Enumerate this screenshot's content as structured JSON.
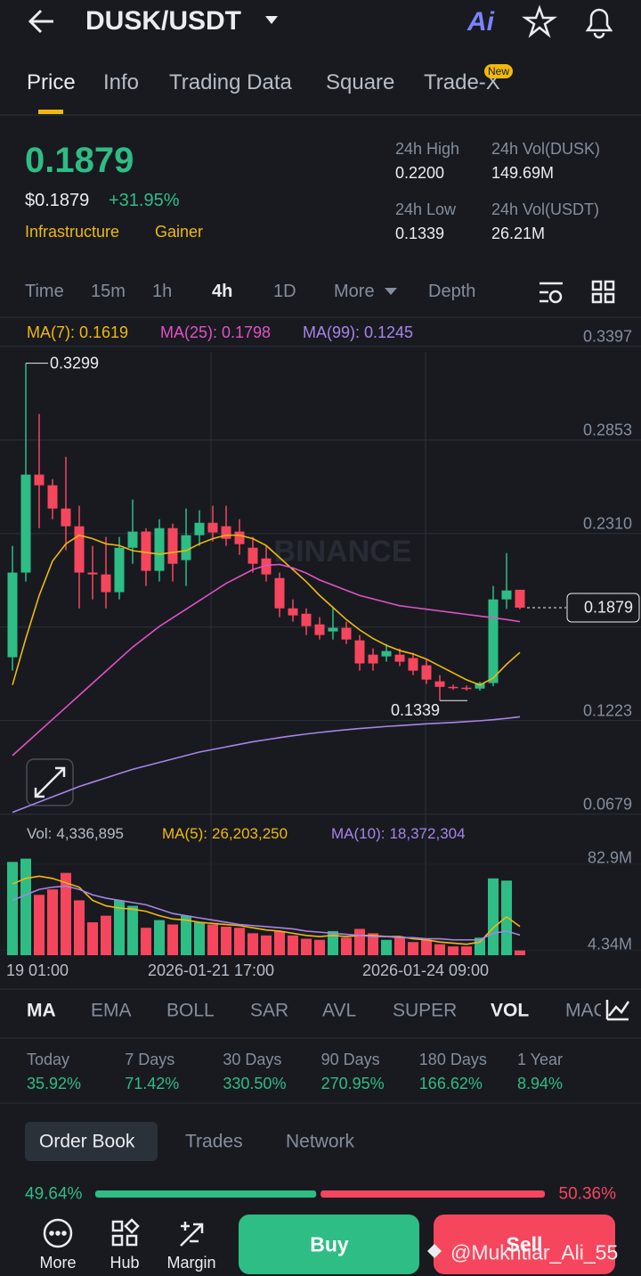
{
  "header": {
    "pair": "DUSK/USDT",
    "ai": "Ai"
  },
  "tabs": [
    "Price",
    "Info",
    "Trading Data",
    "Square",
    "Trade-X"
  ],
  "new_badge": "New",
  "price": {
    "last": "0.1879",
    "fiat": "$0.1879",
    "change": "+31.95%",
    "tags": [
      "Infrastructure",
      "Gainer"
    ]
  },
  "stats": [
    {
      "label": "24h High",
      "value": "0.2200"
    },
    {
      "label": "24h Vol(DUSK)",
      "value": "149.69M"
    },
    {
      "label": "24h Low",
      "value": "0.1339"
    },
    {
      "label": "24h Vol(USDT)",
      "value": "26.21M"
    }
  ],
  "intervals": [
    "Time",
    "15m",
    "1h",
    "4h",
    "1D",
    "More",
    "Depth"
  ],
  "chart": {
    "ylim": [
      0.0569,
      0.3494
    ],
    "yticks": [
      0.3397,
      0.2853,
      {
        "value": 0.231,
        "label": "0.2310"
      },
      0.1766,
      0.1223,
      0.0679
    ],
    "ma_legend": [
      {
        "label": "MA(7):",
        "value": "0.1619",
        "color": "#f0b90b",
        "values": [
          0.143,
          0.17,
          0.195,
          0.215,
          0.225,
          0.23,
          0.228,
          0.225,
          0.224,
          0.221,
          0.22,
          0.219,
          0.22,
          0.221,
          0.225,
          0.228,
          0.23,
          0.23,
          0.228,
          0.224,
          0.217,
          0.21,
          0.203,
          0.195,
          0.188,
          0.181,
          0.175,
          0.17,
          0.166,
          0.163,
          0.161,
          0.158,
          0.154,
          0.15,
          0.146,
          0.143,
          0.147,
          0.155,
          0.1619
        ]
      },
      {
        "label": "MA(25):",
        "value": "0.1798",
        "color": "#e052c4",
        "values": [
          0.102,
          0.109,
          0.116,
          0.123,
          0.13,
          0.137,
          0.144,
          0.151,
          0.158,
          0.165,
          0.171,
          0.177,
          0.182,
          0.187,
          0.192,
          0.197,
          0.202,
          0.206,
          0.21,
          0.2125,
          0.213,
          0.211,
          0.208,
          0.204,
          0.201,
          0.198,
          0.195,
          0.193,
          0.191,
          0.189,
          0.188,
          0.187,
          0.186,
          0.185,
          0.184,
          0.183,
          0.182,
          0.181,
          0.1798
        ]
      },
      {
        "label": "MA(99):",
        "value": "0.1245",
        "color": "#a884e8",
        "values": [
          0.069,
          0.072,
          0.075,
          0.078,
          0.081,
          0.084,
          0.0865,
          0.089,
          0.0915,
          0.094,
          0.096,
          0.098,
          0.1,
          0.102,
          0.104,
          0.1055,
          0.107,
          0.1085,
          0.11,
          0.1112,
          0.1124,
          0.1135,
          0.1145,
          0.1154,
          0.1162,
          0.117,
          0.1177,
          0.1183,
          0.1189,
          0.1194,
          0.1199,
          0.1204,
          0.1208,
          0.1212,
          0.1217,
          0.1222,
          0.1228,
          0.1236,
          0.1245
        ]
      }
    ],
    "up_color": "#2ebd85",
    "down_color": "#f6465d",
    "open": [
      0.1591,
      0.2083,
      0.2652,
      0.259,
      0.2455,
      0.2352,
      0.2083,
      0.2072,
      0.1969,
      0.2227,
      0.2321,
      0.2093,
      0.2341,
      0.2155,
      0.23,
      0.2372,
      0.2352,
      0.2321,
      0.2227,
      0.2165,
      0.2051,
      0.1875,
      0.1844,
      0.1782,
      0.1741,
      0.1762,
      0.1689,
      0.1606,
      0.1596,
      0.1606,
      0.1586,
      0.1544,
      0.1451,
      0.1419,
      0.1414,
      0.1409,
      0.1441,
      0.1927,
      0.1983
    ],
    "high": [
      0.2238,
      0.3299,
      0.3004,
      0.2626,
      0.2755,
      0.2471,
      0.2238,
      0.229,
      0.229,
      0.2507,
      0.2341,
      0.2393,
      0.2367,
      0.2455,
      0.2445,
      0.2471,
      0.2471,
      0.2393,
      0.229,
      0.2238,
      0.2083,
      0.1927,
      0.1875,
      0.1824,
      0.1886,
      0.1798,
      0.172,
      0.1642,
      0.1668,
      0.1642,
      0.1617,
      0.1575,
      0.1487,
      0.1432,
      0.1427,
      0.1448,
      0.2005,
      0.2196,
      0.1983
    ],
    "low": [
      0.1513,
      0.2031,
      0.2341,
      0.2393,
      0.2212,
      0.1875,
      0.1927,
      0.1875,
      0.1927,
      0.2134,
      0.2005,
      0.2031,
      0.2031,
      0.2005,
      0.2238,
      0.2264,
      0.2238,
      0.2186,
      0.2083,
      0.2031,
      0.1824,
      0.1798,
      0.172,
      0.1694,
      0.1694,
      0.1668,
      0.1513,
      0.1513,
      0.1565,
      0.1539,
      0.1487,
      0.1436,
      0.1339,
      0.1402,
      0.1397,
      0.1397,
      0.1422,
      0.1872,
      0.187
    ],
    "close": [
      0.2083,
      0.2652,
      0.259,
      0.2455,
      0.2352,
      0.2083,
      0.2072,
      0.1969,
      0.2227,
      0.2321,
      0.2093,
      0.2341,
      0.2134,
      0.23,
      0.2372,
      0.2316,
      0.2279,
      0.2248,
      0.2134,
      0.2072,
      0.1875,
      0.1834,
      0.1772,
      0.172,
      0.1762,
      0.1694,
      0.1555,
      0.1555,
      0.1627,
      0.1565,
      0.1513,
      0.1461,
      0.1419,
      0.1414,
      0.141,
      0.1441,
      0.1927,
      0.1979,
      0.1879
    ],
    "high_annotation": 0.3299,
    "low_annotation": 0.1339,
    "last_price": 0.1879,
    "watermark": "BINANCE"
  },
  "volume": {
    "legend": [
      {
        "label": "Vol:",
        "value": "4,336,895",
        "color": "#b7bdc6"
      },
      {
        "label": "MA(5):",
        "value": "26,203,250",
        "color": "#f0b90b",
        "values": [
          65,
          70,
          72,
          70,
          66,
          62,
          50,
          45,
          43,
          42,
          40,
          36,
          33,
          32,
          30,
          29,
          28,
          27,
          25,
          23,
          22,
          20,
          18,
          17,
          18,
          17,
          18,
          18,
          17,
          17,
          15,
          14,
          12,
          11,
          10,
          12,
          25,
          35,
          26.2
        ]
      },
      {
        "label": "MA(10):",
        "value": "18,372,304",
        "color": "#a884e8",
        "values": [
          50,
          55,
          60,
          62,
          63,
          60,
          55,
          52,
          50,
          48,
          46,
          42,
          38,
          36,
          34,
          32,
          30,
          28,
          27,
          26,
          25,
          24,
          22,
          21,
          20,
          19,
          18,
          17,
          17,
          16,
          16,
          15,
          15,
          14,
          14,
          14,
          20,
          22,
          18.4
        ]
      }
    ],
    "values": [
      85,
      88,
      55,
      60,
      75,
      50,
      30,
      36,
      50,
      45,
      25,
      32,
      28,
      36,
      30,
      28,
      26,
      25,
      20,
      18,
      22,
      18,
      15,
      14,
      22,
      16,
      24,
      20,
      14,
      16,
      12,
      14,
      10,
      8,
      8,
      16,
      70,
      68,
      4.34
    ],
    "ylim": [
      0,
      95
    ],
    "yticks": [
      {
        "value": 82.9,
        "label": "82.9M"
      },
      {
        "value": 4.34,
        "label": "4.34M"
      }
    ]
  },
  "time_labels": [
    "19 01:00",
    "2026-01-21 17:00",
    "2026-01-24 09:00"
  ],
  "indicators": [
    "MA",
    "EMA",
    "BOLL",
    "SAR",
    "AVL",
    "SUPER",
    "VOL",
    "MACD"
  ],
  "performance": [
    {
      "label": "Today",
      "value": "35.92%"
    },
    {
      "label": "7 Days",
      "value": "71.42%"
    },
    {
      "label": "30 Days",
      "value": "330.50%"
    },
    {
      "label": "90 Days",
      "value": "270.95%"
    },
    {
      "label": "180 Days",
      "value": "166.62%"
    },
    {
      "label": "1 Year",
      "value": "8.94%"
    }
  ],
  "book_tabs": [
    "Order Book",
    "Trades",
    "Network"
  ],
  "ratio": {
    "values": [
      49.64,
      50.36
    ],
    "value_labels": [
      "49.64%",
      "50.36%"
    ]
  },
  "nav": [
    "More",
    "Hub",
    "Margin"
  ],
  "buttons": [
    "Buy",
    "Sell"
  ],
  "watermark": "@Mukhtiar_Ali_55"
}
